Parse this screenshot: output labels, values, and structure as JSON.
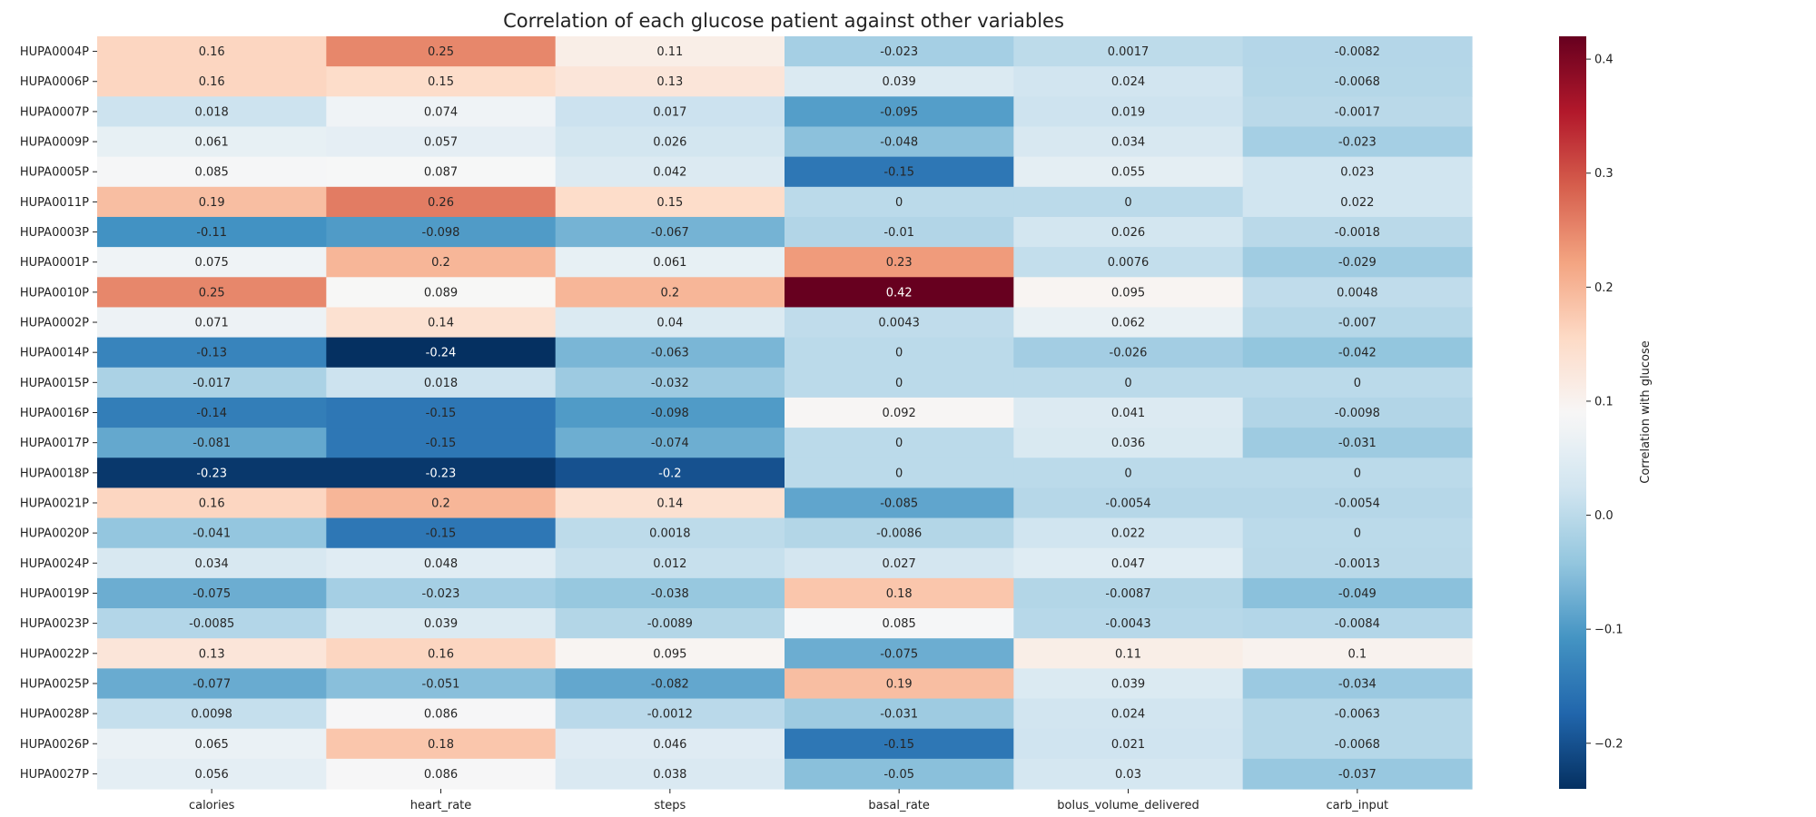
{
  "chart_data": {
    "type": "heatmap",
    "title": "Correlation of each glucose patient against other variables",
    "columns": [
      "calories",
      "heart_rate",
      "steps",
      "basal_rate",
      "bolus_volume_delivered",
      "carb_input"
    ],
    "rows": [
      "HUPA0004P",
      "HUPA0006P",
      "HUPA0007P",
      "HUPA0009P",
      "HUPA0005P",
      "HUPA0011P",
      "HUPA0003P",
      "HUPA0001P",
      "HUPA0010P",
      "HUPA0002P",
      "HUPA0014P",
      "HUPA0015P",
      "HUPA0016P",
      "HUPA0017P",
      "HUPA0018P",
      "HUPA0021P",
      "HUPA0020P",
      "HUPA0024P",
      "HUPA0019P",
      "HUPA0023P",
      "HUPA0022P",
      "HUPA0025P",
      "HUPA0028P",
      "HUPA0026P",
      "HUPA0027P"
    ],
    "values": [
      [
        0.16,
        0.25,
        0.11,
        -0.023,
        0.0017,
        -0.0082
      ],
      [
        0.16,
        0.15,
        0.13,
        0.039,
        0.024,
        -0.0068
      ],
      [
        0.018,
        0.074,
        0.017,
        -0.095,
        0.019,
        -0.0017
      ],
      [
        0.061,
        0.057,
        0.026,
        -0.048,
        0.034,
        -0.023
      ],
      [
        0.085,
        0.087,
        0.042,
        -0.15,
        0.055,
        0.023
      ],
      [
        0.19,
        0.26,
        0.15,
        0,
        0,
        0.022
      ],
      [
        -0.11,
        -0.098,
        -0.067,
        -0.01,
        0.026,
        -0.0018
      ],
      [
        0.075,
        0.2,
        0.061,
        0.23,
        0.0076,
        -0.029
      ],
      [
        0.25,
        0.089,
        0.2,
        0.42,
        0.095,
        0.0048
      ],
      [
        0.071,
        0.14,
        0.04,
        0.0043,
        0.062,
        -0.007
      ],
      [
        -0.13,
        -0.24,
        -0.063,
        0,
        -0.026,
        -0.042
      ],
      [
        -0.017,
        0.018,
        -0.032,
        0,
        0,
        0
      ],
      [
        -0.14,
        -0.15,
        -0.098,
        0.092,
        0.041,
        -0.0098
      ],
      [
        -0.081,
        -0.15,
        -0.074,
        0,
        0.036,
        -0.031
      ],
      [
        -0.23,
        -0.23,
        -0.2,
        0,
        0,
        0
      ],
      [
        0.16,
        0.2,
        0.14,
        -0.085,
        -0.0054,
        -0.0054
      ],
      [
        -0.041,
        -0.15,
        0.0018,
        -0.0086,
        0.022,
        0
      ],
      [
        0.034,
        0.048,
        0.012,
        0.027,
        0.047,
        -0.0013
      ],
      [
        -0.075,
        -0.023,
        -0.038,
        0.18,
        -0.0087,
        -0.049
      ],
      [
        -0.0085,
        0.039,
        -0.0089,
        0.085,
        -0.0043,
        -0.0084
      ],
      [
        0.13,
        0.16,
        0.095,
        -0.075,
        0.11,
        0.1
      ],
      [
        -0.077,
        -0.051,
        -0.082,
        0.19,
        0.039,
        -0.034
      ],
      [
        0.0098,
        0.086,
        -0.0012,
        -0.031,
        0.024,
        -0.0063
      ],
      [
        0.065,
        0.18,
        0.046,
        -0.15,
        0.021,
        -0.0068
      ],
      [
        0.056,
        0.086,
        0.038,
        -0.05,
        0.03,
        -0.037
      ]
    ],
    "labels": [
      [
        "0.16",
        "0.25",
        "0.11",
        "-0.023",
        "0.0017",
        "-0.0082"
      ],
      [
        "0.16",
        "0.15",
        "0.13",
        "0.039",
        "0.024",
        "-0.0068"
      ],
      [
        "0.018",
        "0.074",
        "0.017",
        "-0.095",
        "0.019",
        "-0.0017"
      ],
      [
        "0.061",
        "0.057",
        "0.026",
        "-0.048",
        "0.034",
        "-0.023"
      ],
      [
        "0.085",
        "0.087",
        "0.042",
        "-0.15",
        "0.055",
        "0.023"
      ],
      [
        "0.19",
        "0.26",
        "0.15",
        "0",
        "0",
        "0.022"
      ],
      [
        "-0.11",
        "-0.098",
        "-0.067",
        "-0.01",
        "0.026",
        "-0.0018"
      ],
      [
        "0.075",
        "0.2",
        "0.061",
        "0.23",
        "0.0076",
        "-0.029"
      ],
      [
        "0.25",
        "0.089",
        "0.2",
        "0.42",
        "0.095",
        "0.0048"
      ],
      [
        "0.071",
        "0.14",
        "0.04",
        "0.0043",
        "0.062",
        "-0.007"
      ],
      [
        "-0.13",
        "-0.24",
        "-0.063",
        "0",
        "-0.026",
        "-0.042"
      ],
      [
        "-0.017",
        "0.018",
        "-0.032",
        "0",
        "0",
        "0"
      ],
      [
        "-0.14",
        "-0.15",
        "-0.098",
        "0.092",
        "0.041",
        "-0.0098"
      ],
      [
        "-0.081",
        "-0.15",
        "-0.074",
        "0",
        "0.036",
        "-0.031"
      ],
      [
        "-0.23",
        "-0.23",
        "-0.2",
        "0",
        "0",
        "0"
      ],
      [
        "0.16",
        "0.2",
        "0.14",
        "-0.085",
        "-0.0054",
        "-0.0054"
      ],
      [
        "-0.041",
        "-0.15",
        "0.0018",
        "-0.0086",
        "0.022",
        "0"
      ],
      [
        "0.034",
        "0.048",
        "0.012",
        "0.027",
        "0.047",
        "-0.0013"
      ],
      [
        "-0.075",
        "-0.023",
        "-0.038",
        "0.18",
        "-0.0087",
        "-0.049"
      ],
      [
        "-0.0085",
        "0.039",
        "-0.0089",
        "0.085",
        "-0.0043",
        "-0.0084"
      ],
      [
        "0.13",
        "0.16",
        "0.095",
        "-0.075",
        "0.11",
        "0.1"
      ],
      [
        "-0.077",
        "-0.051",
        "-0.082",
        "0.19",
        "0.039",
        "-0.034"
      ],
      [
        "0.0098",
        "0.086",
        "-0.0012",
        "-0.031",
        "0.024",
        "-0.0063"
      ],
      [
        "0.065",
        "0.18",
        "0.046",
        "-0.15",
        "0.021",
        "-0.0068"
      ],
      [
        "0.056",
        "0.086",
        "0.038",
        "-0.05",
        "0.03",
        "-0.037"
      ]
    ],
    "colorbar": {
      "label": "Correlation with glucose",
      "vmin": -0.24,
      "vmax": 0.42,
      "ticks": [
        -0.2,
        -0.1,
        0.0,
        0.1,
        0.2,
        0.3,
        0.4
      ],
      "tick_labels": [
        "−0.2",
        "−0.1",
        "0.0",
        "0.1",
        "0.2",
        "0.3",
        "0.4"
      ],
      "colormap": "RdBu_r",
      "center": 0.088
    },
    "grid": false
  }
}
